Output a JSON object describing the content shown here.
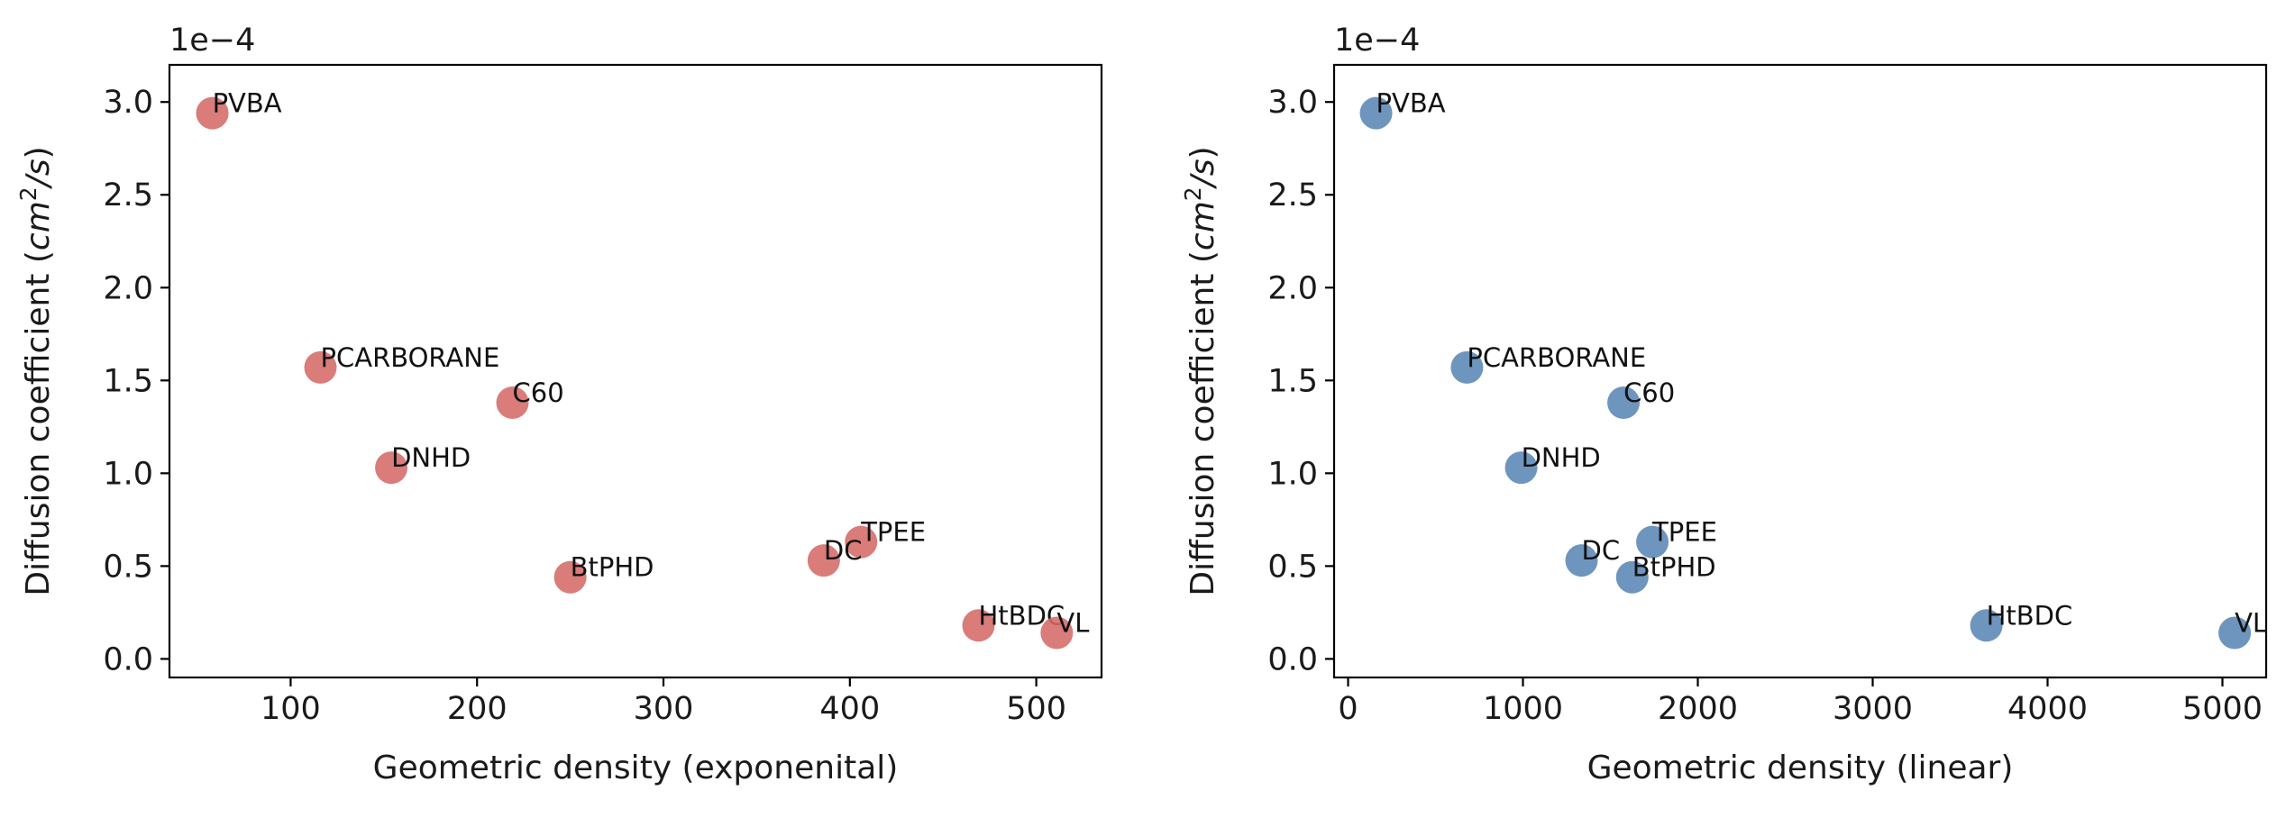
{
  "chart_data": [
    {
      "type": "scatter",
      "xlabel": "Geometric density (exponenital)",
      "ylabel_prefix": "Diffusion coefficient (",
      "ylabel_unit_base": "cm",
      "ylabel_unit_exp": "2",
      "ylabel_unit_tail": "/s",
      "ylabel_suffix": ")",
      "y_offset_label": "1e−4",
      "xlim": [
        35,
        535
      ],
      "ylim": [
        -0.1,
        3.2
      ],
      "xticks": [
        100,
        200,
        300,
        400,
        500
      ],
      "yticks": [
        0.0,
        0.5,
        1.0,
        1.5,
        2.0,
        2.5,
        3.0
      ],
      "xtick_labels": [
        "100",
        "200",
        "300",
        "400",
        "500"
      ],
      "ytick_labels": [
        "0.0",
        "0.5",
        "1.0",
        "1.5",
        "2.0",
        "2.5",
        "3.0"
      ],
      "color": "#d46a68",
      "grid": false,
      "points": [
        {
          "label": "PVBA",
          "x": 58,
          "y": 2.94
        },
        {
          "label": "PCARBORANE",
          "x": 116,
          "y": 1.57
        },
        {
          "label": "C60",
          "x": 219,
          "y": 1.38
        },
        {
          "label": "DNHD",
          "x": 154,
          "y": 1.03
        },
        {
          "label": "TPEE",
          "x": 406,
          "y": 0.63
        },
        {
          "label": "DC",
          "x": 386,
          "y": 0.53
        },
        {
          "label": "BtPHD",
          "x": 250,
          "y": 0.44
        },
        {
          "label": "HtBDC",
          "x": 469,
          "y": 0.18
        },
        {
          "label": "VL",
          "x": 511,
          "y": 0.14
        }
      ]
    },
    {
      "type": "scatter",
      "xlabel": "Geometric density (linear)",
      "ylabel_prefix": "Diffusion coefficient (",
      "ylabel_unit_base": "cm",
      "ylabel_unit_exp": "2",
      "ylabel_unit_tail": "/s",
      "ylabel_suffix": ")",
      "y_offset_label": "1e−4",
      "xlim": [
        -80,
        5250
      ],
      "ylim": [
        -0.1,
        3.2
      ],
      "xticks": [
        0,
        1000,
        2000,
        3000,
        4000,
        5000
      ],
      "yticks": [
        0.0,
        0.5,
        1.0,
        1.5,
        2.0,
        2.5,
        3.0
      ],
      "xtick_labels": [
        "0",
        "1000",
        "2000",
        "3000",
        "4000",
        "5000"
      ],
      "ytick_labels": [
        "0.0",
        "0.5",
        "1.0",
        "1.5",
        "2.0",
        "2.5",
        "3.0"
      ],
      "color": "#5a86b5",
      "grid": false,
      "points": [
        {
          "label": "PVBA",
          "x": 160,
          "y": 2.94
        },
        {
          "label": "PCARBORANE",
          "x": 680,
          "y": 1.57
        },
        {
          "label": "C60",
          "x": 1575,
          "y": 1.38
        },
        {
          "label": "DNHD",
          "x": 990,
          "y": 1.03
        },
        {
          "label": "TPEE",
          "x": 1740,
          "y": 0.63
        },
        {
          "label": "DC",
          "x": 1335,
          "y": 0.53
        },
        {
          "label": "BtPHD",
          "x": 1625,
          "y": 0.44
        },
        {
          "label": "HtBDC",
          "x": 3650,
          "y": 0.18
        },
        {
          "label": "VL",
          "x": 5070,
          "y": 0.14
        }
      ]
    }
  ]
}
